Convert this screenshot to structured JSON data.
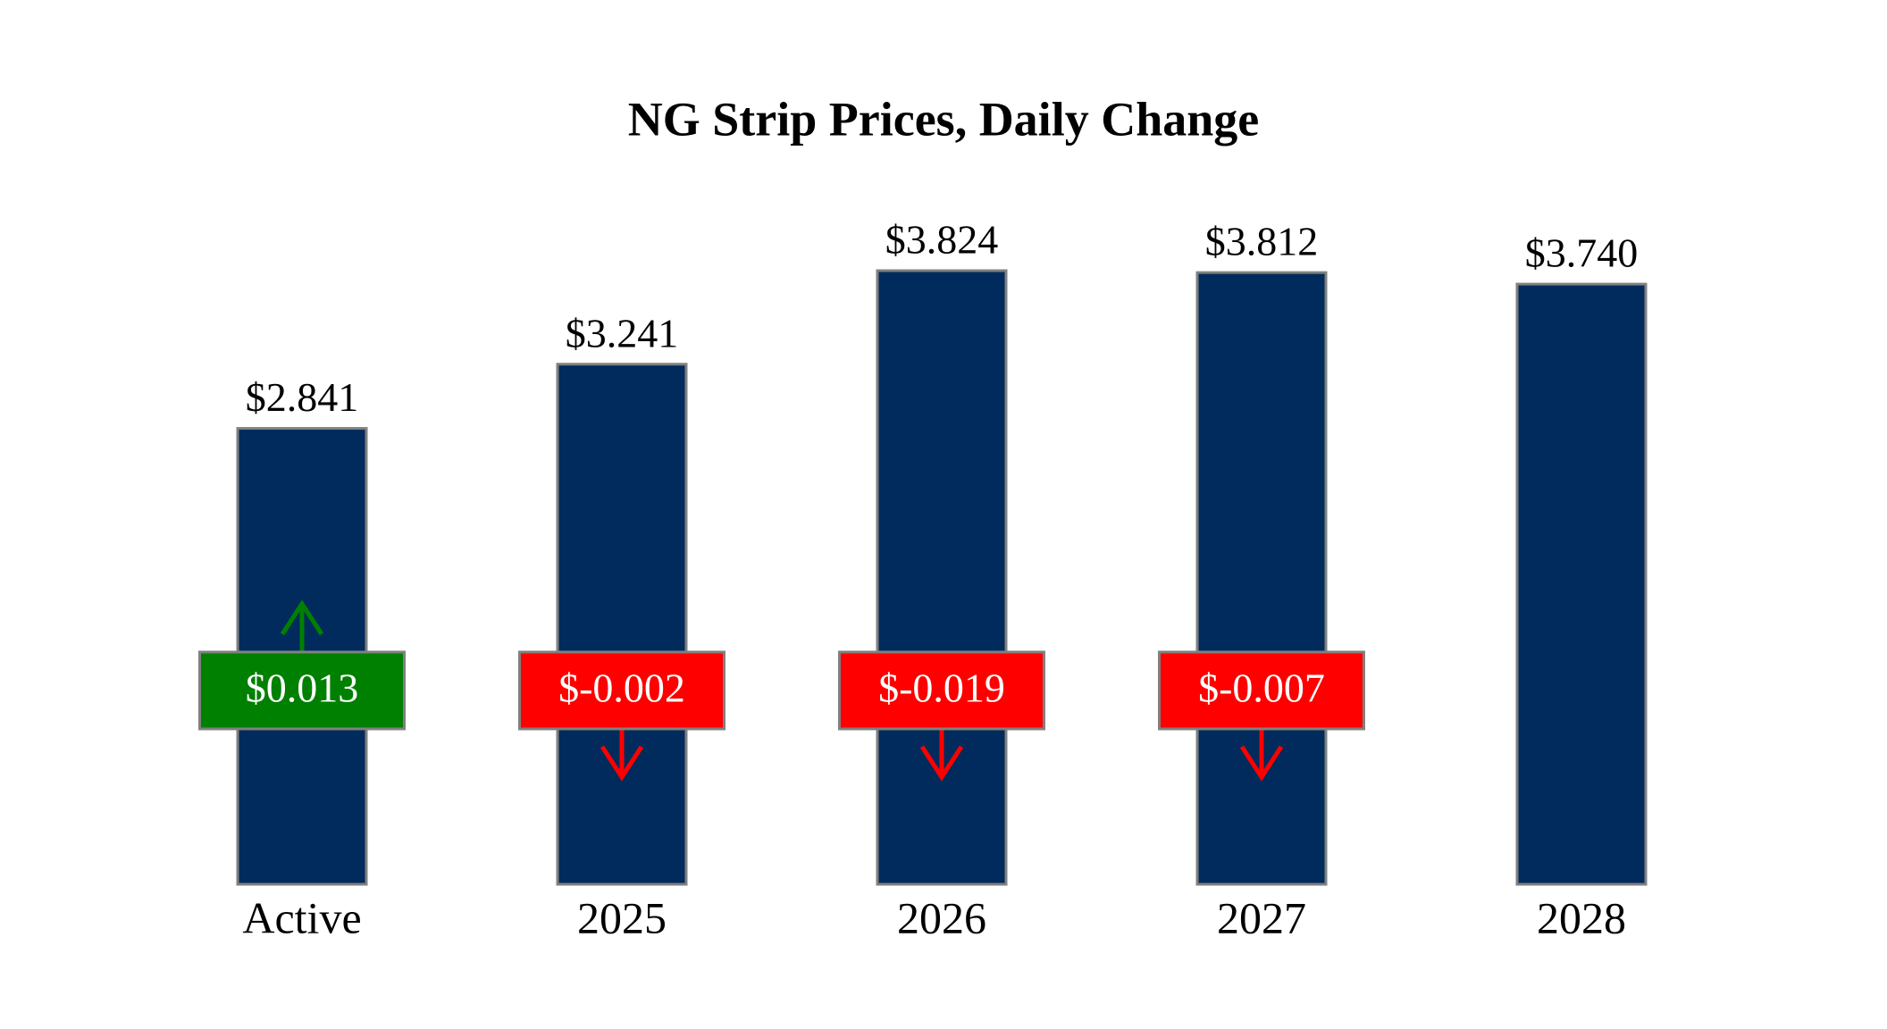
{
  "chart_data": {
    "type": "bar",
    "title": "NG Strip Prices, Daily Change",
    "categories": [
      "Active",
      "2025",
      "2026",
      "2027",
      "2028"
    ],
    "values": [
      2.841,
      3.241,
      3.824,
      3.812,
      3.74
    ],
    "value_labels": [
      "$2.841",
      "$3.241",
      "$3.824",
      "$3.812",
      "$3.740"
    ],
    "changes": [
      0.013,
      -0.002,
      -0.019,
      -0.007,
      null
    ],
    "change_labels": [
      "$0.013",
      "$-0.002",
      "$-0.019",
      "$-0.007",
      null
    ],
    "color": "#002b5c",
    "up_color": "#008000",
    "down_color": "#ff0000"
  }
}
